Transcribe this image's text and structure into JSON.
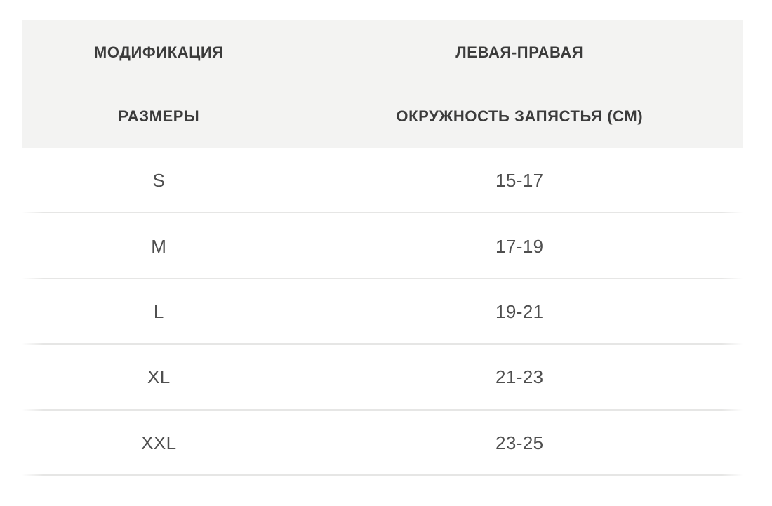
{
  "table": {
    "header": {
      "rows": [
        {
          "left": "МОДИФИКАЦИЯ",
          "right": "ЛЕВАЯ-ПРАВАЯ"
        },
        {
          "left": "РАЗМЕРЫ",
          "right": "ОКРУЖНОСТЬ ЗАПЯСТЬЯ (СМ)"
        }
      ]
    },
    "body": {
      "rows": [
        {
          "size": "S",
          "circumference": "15-17"
        },
        {
          "size": "M",
          "circumference": "17-19"
        },
        {
          "size": "L",
          "circumference": "19-21"
        },
        {
          "size": "XL",
          "circumference": "21-23"
        },
        {
          "size": "XXL",
          "circumference": "23-25"
        }
      ]
    },
    "colors": {
      "header_bg": "#f3f3f2",
      "header_text": "#3b3b3b",
      "cell_text": "#4f4f4f",
      "divider": "#e6e6e5",
      "page_bg": "#ffffff"
    }
  }
}
